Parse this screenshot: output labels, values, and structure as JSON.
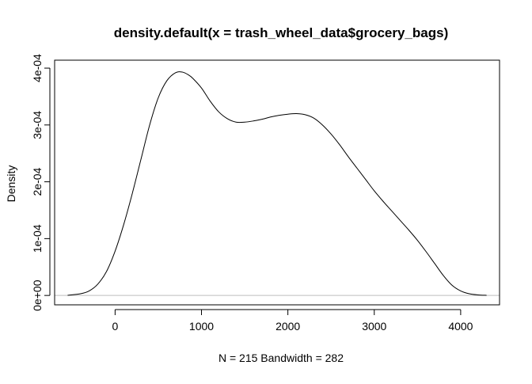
{
  "chart_data": {
    "type": "line",
    "title": "density.default(x = trash_wheel_data$grocery_bags)",
    "xlabel": "N = 215   Bandwidth = 282",
    "ylabel": "Density",
    "xlim": [
      -700,
      4450
    ],
    "ylim": [
      -1.65e-05,
      0.000414
    ],
    "x_ticks": [
      0,
      1000,
      2000,
      3000,
      4000
    ],
    "x_tick_labels": [
      "0",
      "1000",
      "2000",
      "3000",
      "4000"
    ],
    "y_ticks": [
      0,
      0.0001,
      0.0002,
      0.0003,
      0.0004
    ],
    "y_tick_labels": [
      "0e+00",
      "1e-04",
      "2e-04",
      "3e-04",
      "4e-04"
    ],
    "baseline": 0,
    "grid": false,
    "legend": "none",
    "colors": {
      "line": "#000000",
      "baseline": "#bebebe",
      "axis": "#000000"
    },
    "series": [
      {
        "x": [
          -550,
          -400,
          -300,
          -200,
          -100,
          0,
          100,
          200,
          300,
          400,
          500,
          600,
          700,
          780,
          850,
          900,
          1000,
          1100,
          1200,
          1300,
          1400,
          1500,
          1600,
          1700,
          1800,
          1900,
          2000,
          2100,
          2200,
          2300,
          2400,
          2500,
          2600,
          2700,
          2800,
          2900,
          3000,
          3100,
          3200,
          3300,
          3400,
          3500,
          3600,
          3700,
          3800,
          3900,
          4000,
          4100,
          4200,
          4300
        ],
        "y": [
          3e-07,
          3e-06,
          8e-06,
          2e-05,
          4.2e-05,
          7.8e-05,
          0.000125,
          0.00018,
          0.00024,
          0.0003,
          0.000348,
          0.000378,
          0.000392,
          0.000393,
          0.000388,
          0.000382,
          0.000365,
          0.000342,
          0.000323,
          0.000311,
          0.000305,
          0.000305,
          0.000307,
          0.00031,
          0.000314,
          0.000317,
          0.000319,
          0.00032,
          0.000318,
          0.000312,
          0.0003,
          0.000284,
          0.000265,
          0.000244,
          0.000224,
          0.000204,
          0.000184,
          0.000166,
          0.000149,
          0.000132,
          0.000115,
          9.7e-05,
          7.7e-05,
          5.6e-05,
          3.5e-05,
          1.8e-05,
          8e-06,
          3e-06,
          1e-06,
          3e-07
        ]
      }
    ]
  }
}
